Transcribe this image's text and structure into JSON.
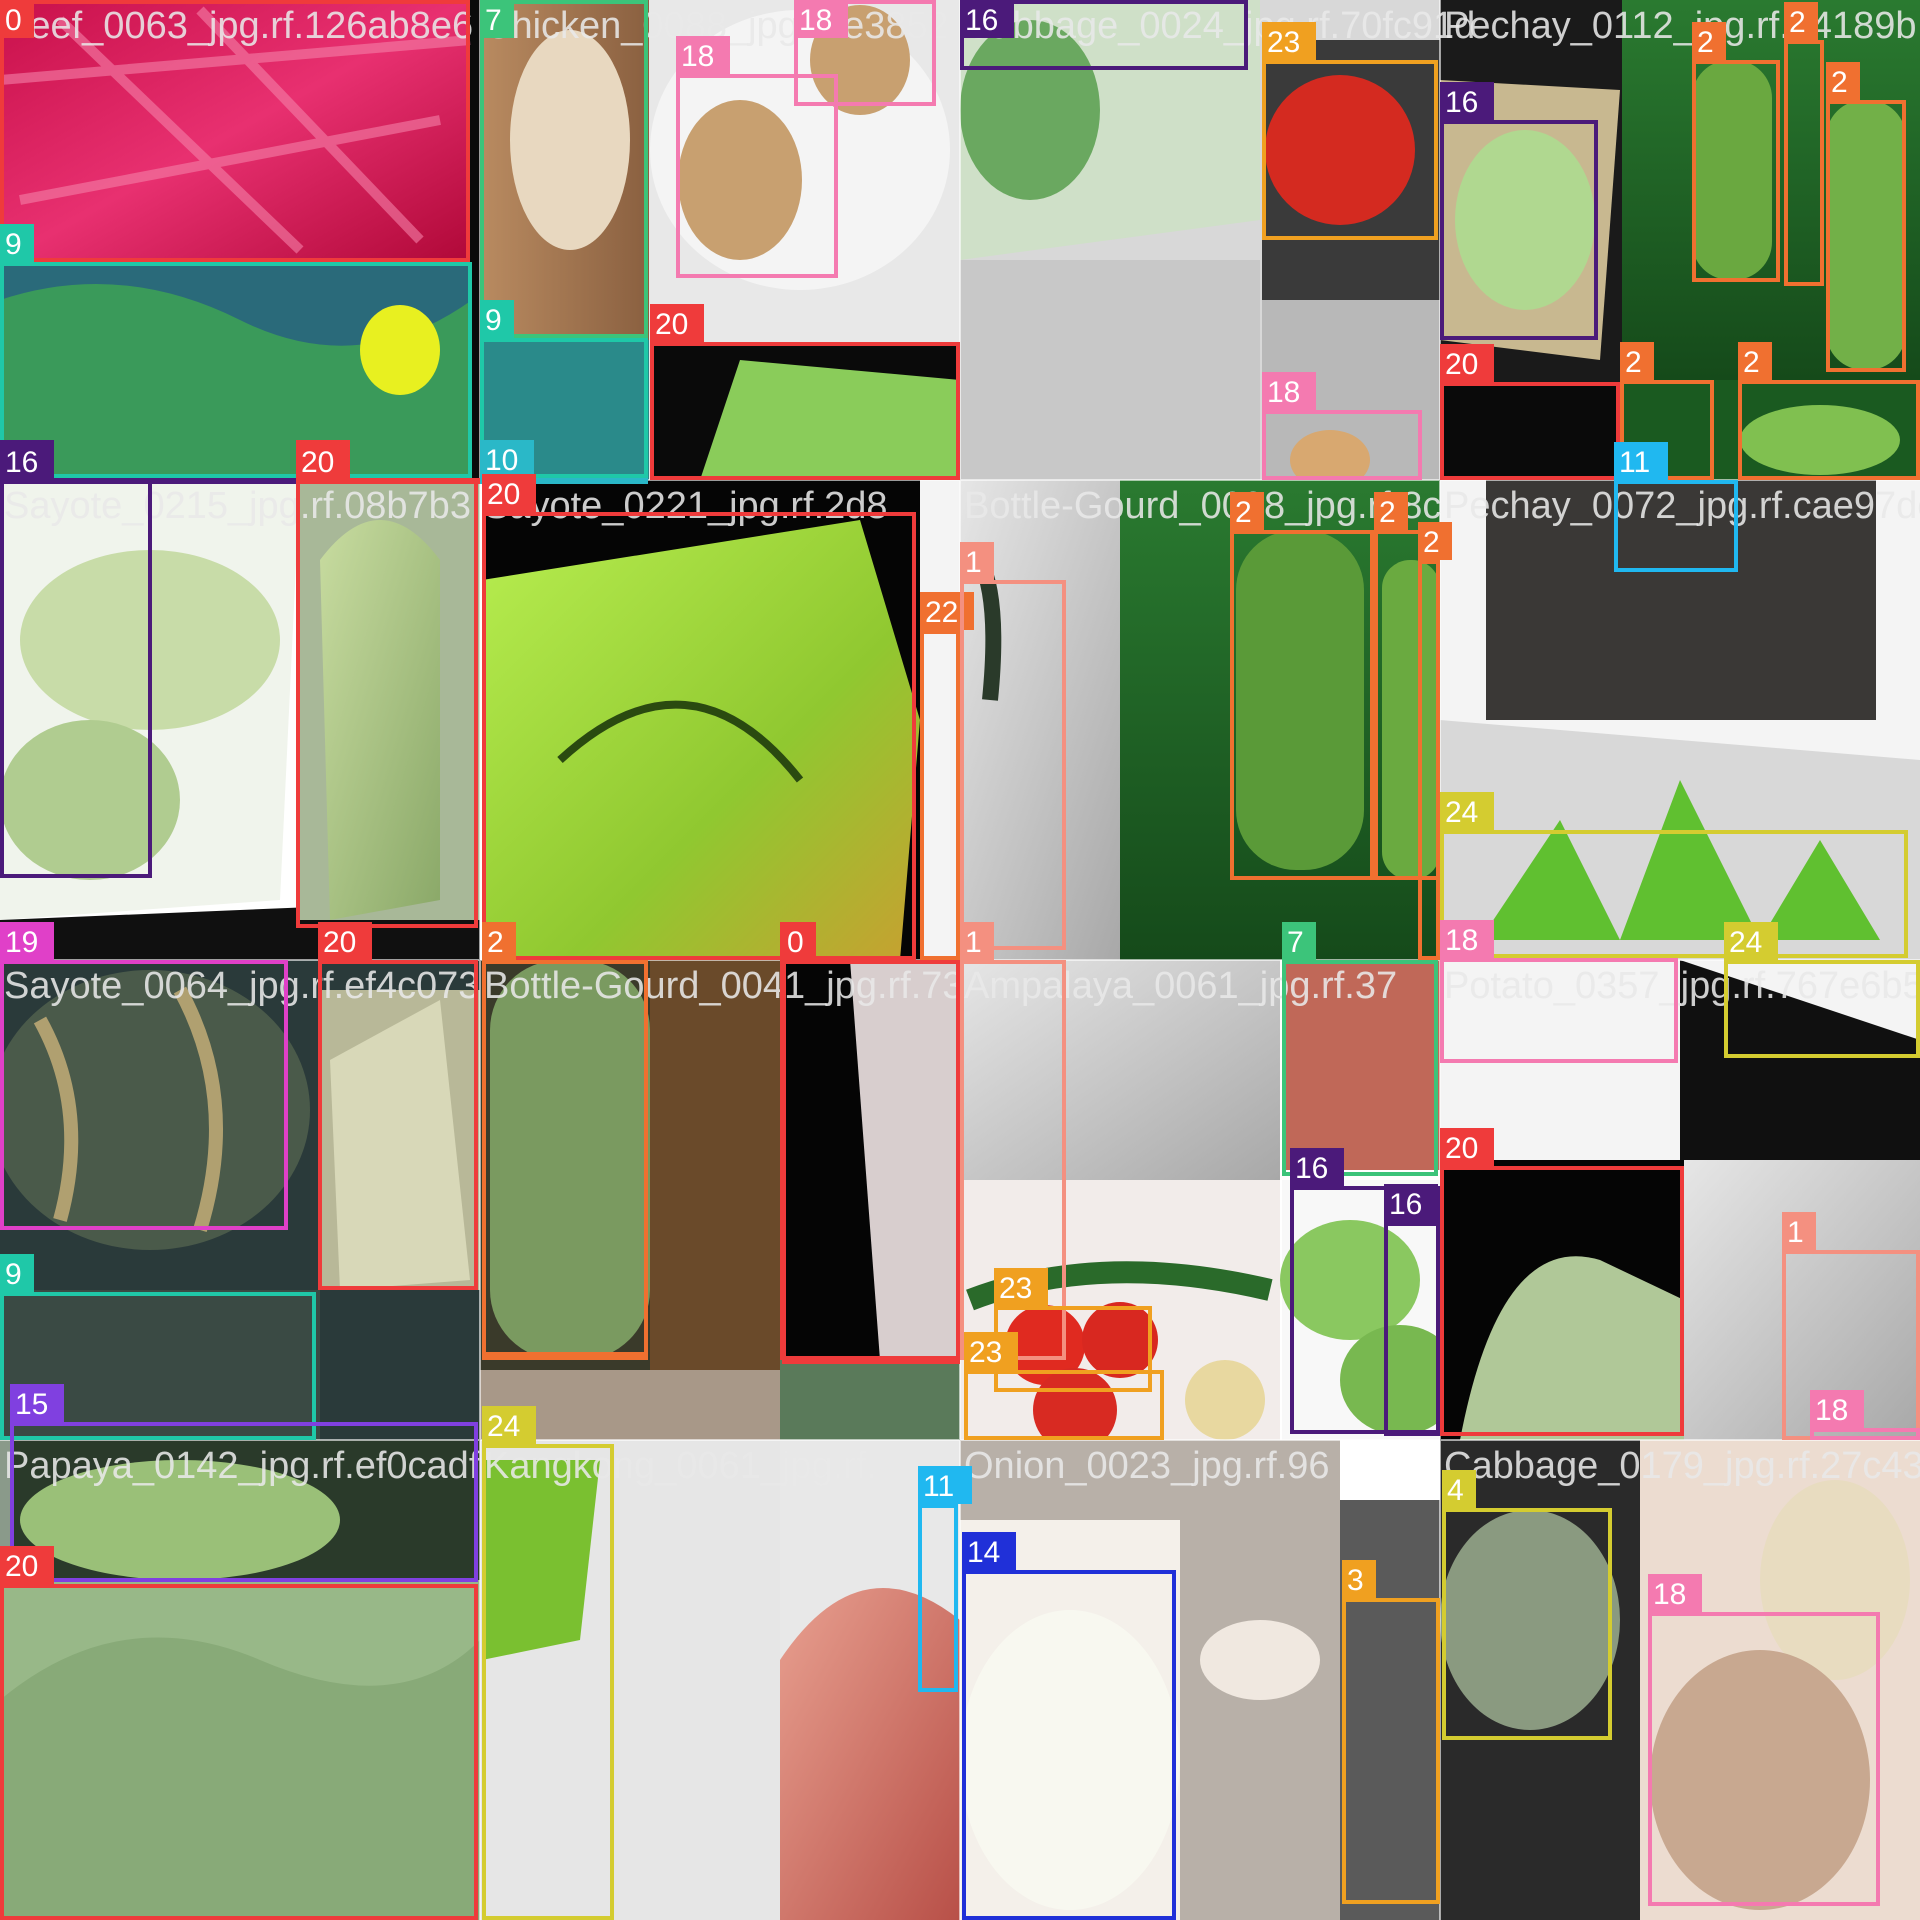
{
  "mosaic": {
    "tiles": [
      {
        "title": "Beef_0063_jpg.rf.126ab8e6"
      },
      {
        "title": "Chicken_0088_jpg.rf.e3852"
      },
      {
        "title": "Cabbage_0024_jpg.rf.70fc91d"
      },
      {
        "title": "Pechay_0112_jpg.rf.34189b"
      },
      {
        "title": "Sayote_0215_jpg.rf.08b7b3"
      },
      {
        "title": "Sayote_0221_jpg.rf.2d8"
      },
      {
        "title": "Bottle-Gourd_0098_jpg.rf.8c"
      },
      {
        "title": "Pechay_0072_jpg.rf.cae97dea"
      },
      {
        "title": "Sayote_0064_jpg.rf.ef4c073"
      },
      {
        "title": "Bottle-Gourd_0041_jpg.rf.73"
      },
      {
        "title": "Ampalaya_0061_jpg.rf.37"
      },
      {
        "title": "Potato_0357_jpg.rf.767e6b5"
      },
      {
        "title": "Papaya_0142_jpg.rf.ef0cadf"
      },
      {
        "title": "Kangkong_0061_jpg.rf."
      },
      {
        "title": "Onion_0023_jpg.rf.96"
      },
      {
        "title": "Cabbage_0179_jpg.rf.27c43"
      }
    ],
    "boxes": [
      {
        "label": "0",
        "color": "#ef3b3b"
      },
      {
        "label": "9",
        "color": "#1fc8a8"
      },
      {
        "label": "16",
        "color": "#4b1a7a"
      },
      {
        "label": "20",
        "color": "#ef3b3b"
      },
      {
        "label": "7",
        "color": "#3cc47a"
      },
      {
        "label": "18",
        "color": "#f47ab0"
      },
      {
        "label": "18",
        "color": "#f47ab0"
      },
      {
        "label": "9",
        "color": "#1fc8a8"
      },
      {
        "label": "10",
        "color": "#2ab8c8"
      },
      {
        "label": "20",
        "color": "#ef3b3b"
      },
      {
        "label": "16",
        "color": "#4b1a7a"
      },
      {
        "label": "23",
        "color": "#f0a020"
      },
      {
        "label": "18",
        "color": "#f47ab0"
      },
      {
        "label": "16",
        "color": "#4b1a7a"
      },
      {
        "label": "20",
        "color": "#ef3b3b"
      },
      {
        "label": "2",
        "color": "#f07030"
      },
      {
        "label": "2",
        "color": "#f07030"
      },
      {
        "label": "2",
        "color": "#f07030"
      },
      {
        "label": "2",
        "color": "#f07030"
      },
      {
        "label": "2",
        "color": "#f07030"
      },
      {
        "label": "11",
        "color": "#20b8f0"
      },
      {
        "label": "16",
        "color": "#4b1a7a"
      },
      {
        "label": "20",
        "color": "#ef3b3b"
      },
      {
        "label": "20",
        "color": "#ef3b3b"
      },
      {
        "label": "22",
        "color": "#f07030"
      },
      {
        "label": "2",
        "color": "#f07030"
      },
      {
        "label": "0",
        "color": "#ef3b3b"
      },
      {
        "label": "1",
        "color": "#f49080"
      },
      {
        "label": "1",
        "color": "#f49080"
      },
      {
        "label": "2",
        "color": "#f07030"
      },
      {
        "label": "2",
        "color": "#f07030"
      },
      {
        "label": "2",
        "color": "#f07030"
      },
      {
        "label": "11",
        "color": "#20b8f0"
      },
      {
        "label": "24",
        "color": "#d4cc30"
      },
      {
        "label": "18",
        "color": "#f47ab0"
      },
      {
        "label": "19",
        "color": "#e040c8"
      },
      {
        "label": "20",
        "color": "#ef3b3b"
      },
      {
        "label": "9",
        "color": "#1fc8a8"
      },
      {
        "label": "15",
        "color": "#8040e0"
      },
      {
        "label": "2",
        "color": "#f07030"
      },
      {
        "label": "0",
        "color": "#ef3b3b"
      },
      {
        "label": "7",
        "color": "#3cc47a"
      },
      {
        "label": "16",
        "color": "#4b1a7a"
      },
      {
        "label": "16",
        "color": "#4b1a7a"
      },
      {
        "label": "23",
        "color": "#f0a020"
      },
      {
        "label": "23",
        "color": "#f0a020"
      },
      {
        "label": "24",
        "color": "#d4cc30"
      },
      {
        "label": "20",
        "color": "#ef3b3b"
      },
      {
        "label": "1",
        "color": "#f49080"
      },
      {
        "label": "18",
        "color": "#f47ab0"
      },
      {
        "label": "20",
        "color": "#ef3b3b"
      },
      {
        "label": "24",
        "color": "#d4cc30"
      },
      {
        "label": "11",
        "color": "#20b8f0"
      },
      {
        "label": "14",
        "color": "#2030d8"
      },
      {
        "label": "3",
        "color": "#f0a020"
      },
      {
        "label": "4",
        "color": "#d4cc30"
      },
      {
        "label": "18",
        "color": "#f47ab0"
      }
    ]
  }
}
